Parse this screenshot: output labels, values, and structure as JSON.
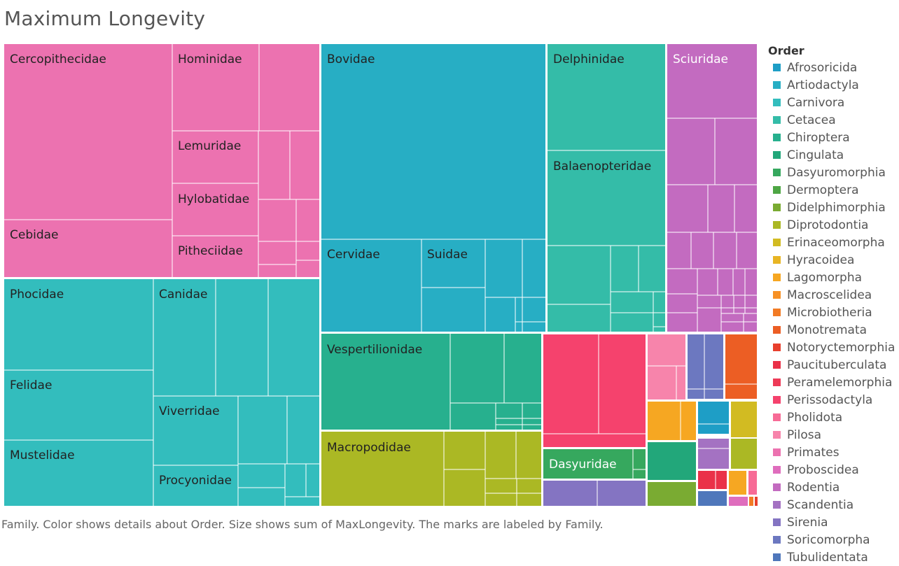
{
  "title": "Maximum Longevity",
  "caption": "Family.  Color shows details about Order.  Size shows sum of MaxLongevity.  The marks are labeled by Family.",
  "legend": {
    "title": "Order",
    "items": [
      {
        "label": "Afrosoricida",
        "color": "#1e9ec6"
      },
      {
        "label": "Artiodactyla",
        "color": "#27aec4"
      },
      {
        "label": "Carnivora",
        "color": "#33bdbd"
      },
      {
        "label": "Cetacea",
        "color": "#34bca8"
      },
      {
        "label": "Chiroptera",
        "color": "#27b08e"
      },
      {
        "label": "Cingulata",
        "color": "#22a77a"
      },
      {
        "label": "Dasyuromorphia",
        "color": "#36a85e"
      },
      {
        "label": "Dermoptera",
        "color": "#4ea644"
      },
      {
        "label": "Didelphimorphia",
        "color": "#7aab32"
      },
      {
        "label": "Diprotodontia",
        "color": "#abb824"
      },
      {
        "label": "Erinaceomorpha",
        "color": "#d2bb22"
      },
      {
        "label": "Hyracoidea",
        "color": "#e8b524"
      },
      {
        "label": "Lagomorpha",
        "color": "#f6a722"
      },
      {
        "label": "Macroscelidea",
        "color": "#f79125"
      },
      {
        "label": "Microbiotheria",
        "color": "#f27b24"
      },
      {
        "label": "Monotremata",
        "color": "#ec5e24"
      },
      {
        "label": "Notoryctemorphia",
        "color": "#e8402d"
      },
      {
        "label": "Paucituberculata",
        "color": "#ea3148"
      },
      {
        "label": "Peramelemorphia",
        "color": "#ee3a57"
      },
      {
        "label": "Perissodactyla",
        "color": "#f5426d"
      },
      {
        "label": "Pholidota",
        "color": "#f76b96"
      },
      {
        "label": "Pilosa",
        "color": "#f784ab"
      },
      {
        "label": "Primates",
        "color": "#ec72b0"
      },
      {
        "label": "Proboscidea",
        "color": "#df6dbd"
      },
      {
        "label": "Rodentia",
        "color": "#c36bc0"
      },
      {
        "label": "Scandentia",
        "color": "#a472c2"
      },
      {
        "label": "Sirenia",
        "color": "#8474c2"
      },
      {
        "label": "Soricomorpha",
        "color": "#6c78c0"
      },
      {
        "label": "Tubulidentata",
        "color": "#4f77bb"
      }
    ]
  },
  "chart_data": {
    "type": "treemap",
    "measure": "MaxLongevity",
    "labeled_families": [
      {
        "family": "Cercopithecidae",
        "order": "Primates"
      },
      {
        "family": "Cebidae",
        "order": "Primates"
      },
      {
        "family": "Hominidae",
        "order": "Primates"
      },
      {
        "family": "Lemuridae",
        "order": "Primates"
      },
      {
        "family": "Hylobatidae",
        "order": "Primates"
      },
      {
        "family": "Pitheciidae",
        "order": "Primates"
      },
      {
        "family": "Bovidae",
        "order": "Artiodactyla"
      },
      {
        "family": "Cervidae",
        "order": "Artiodactyla"
      },
      {
        "family": "Suidae",
        "order": "Artiodactyla"
      },
      {
        "family": "Delphinidae",
        "order": "Cetacea"
      },
      {
        "family": "Balaenopteridae",
        "order": "Cetacea"
      },
      {
        "family": "Sciuridae",
        "order": "Rodentia"
      },
      {
        "family": "Phocidae",
        "order": "Carnivora"
      },
      {
        "family": "Felidae",
        "order": "Carnivora"
      },
      {
        "family": "Mustelidae",
        "order": "Carnivora"
      },
      {
        "family": "Canidae",
        "order": "Carnivora"
      },
      {
        "family": "Viverridae",
        "order": "Carnivora"
      },
      {
        "family": "Procyonidae",
        "order": "Carnivora"
      },
      {
        "family": "Vespertilionidae",
        "order": "Chiroptera"
      },
      {
        "family": "Macropodidae",
        "order": "Diprotodontia"
      },
      {
        "family": "Dasyuridae",
        "order": "Dasyuromorphia"
      }
    ]
  }
}
